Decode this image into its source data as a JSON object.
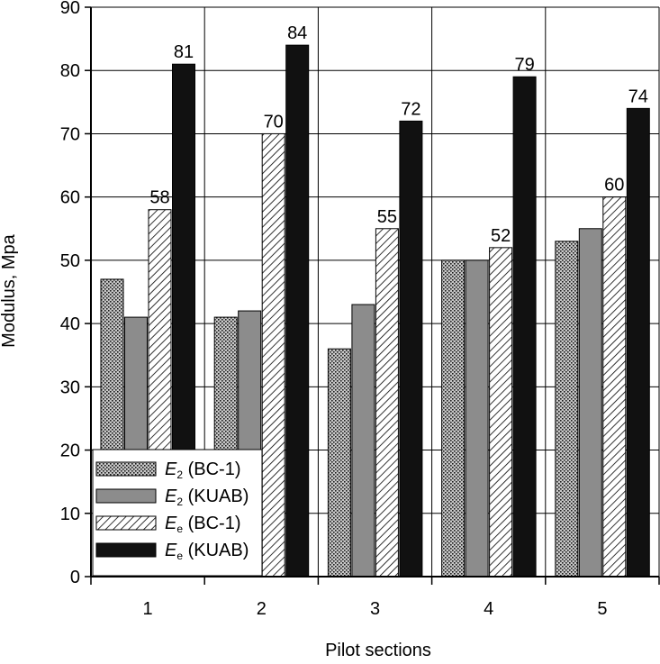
{
  "chart_data": {
    "type": "bar",
    "xlabel": "Pilot sections",
    "ylabel": "Modulus, Mpa",
    "ylim": [
      0,
      90
    ],
    "yticks": [
      0,
      10,
      20,
      30,
      40,
      50,
      60,
      70,
      80,
      90
    ],
    "categories": [
      "1",
      "2",
      "3",
      "4",
      "5"
    ],
    "grid": true,
    "legend_position": "bottom-left",
    "series": [
      {
        "key": "e2_bc1",
        "symbol": "E",
        "sub": "2",
        "suffix": " (BC-1)",
        "values": [
          47,
          41,
          36,
          50,
          53
        ],
        "pattern": "dots",
        "show_labels": false
      },
      {
        "key": "e2_kuab",
        "symbol": "E",
        "sub": "2",
        "suffix": " (KUAB)",
        "values": [
          41,
          42,
          43,
          50,
          55
        ],
        "pattern": "gray",
        "show_labels": false
      },
      {
        "key": "ee_bc1",
        "symbol": "E",
        "sub": "e",
        "suffix": " (BC-1)",
        "values": [
          58,
          70,
          55,
          52,
          60
        ],
        "pattern": "hatch",
        "show_labels": true
      },
      {
        "key": "ee_kuab",
        "symbol": "E",
        "sub": "e",
        "suffix": " (KUAB)",
        "values": [
          81,
          84,
          72,
          79,
          74
        ],
        "pattern": "black",
        "show_labels": true
      }
    ]
  }
}
